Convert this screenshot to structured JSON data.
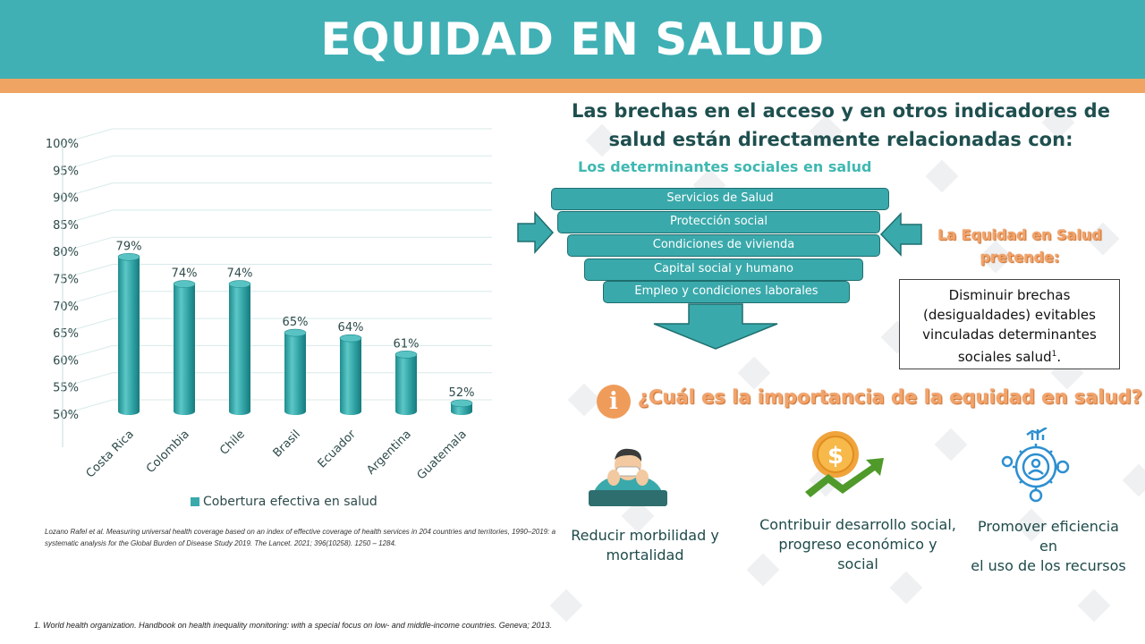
{
  "header": {
    "title": "EQUIDAD EN SALUD"
  },
  "chart_data": {
    "type": "bar",
    "categories": [
      "Costa Rica",
      "Colombia",
      "Chile",
      "Brasil",
      "Ecuador",
      "Argentina",
      "Guatemala"
    ],
    "series": [
      {
        "name": "Cobertura efectiva en salud",
        "values": [
          79,
          74,
          74,
          65,
          64,
          61,
          52
        ]
      }
    ],
    "data_labels": [
      "79%",
      "74%",
      "74%",
      "65%",
      "64%",
      "61%",
      "52%"
    ],
    "y_ticks": [
      "50%",
      "55%",
      "60%",
      "65%",
      "70%",
      "75%",
      "80%",
      "85%",
      "90%",
      "95%",
      "100%"
    ],
    "ylim": [
      50,
      100
    ],
    "legend": "bottom",
    "color": "#3aa9ab"
  },
  "citation": "Lozano Rafel et al. Measuring universal health coverage based on an index of effective coverage of health services in 204 countries and territories, 1990–2019: a systematic analysis for the Global Burden of Disease Study 2019. The Lancet. 2021; 396(10258). 1250 – 1284.",
  "footnote": "1. World health organization. Handbook on health inequality monitoring: with a special focus on low- and middle-income countries. Geneva; 2013.",
  "right": {
    "heading_line1": "Las brechas en el acceso y en otros indicadores de",
    "heading_line2": "salud están directamente relacionadas con:",
    "determinants_title": "Los determinantes sociales en salud",
    "funnel": [
      "Servicios de Salud",
      "Protección social",
      "Condiciones de vivienda",
      "Capital social y humano",
      "Empleo y condiciones laborales"
    ],
    "equity_label_line1": "La Equidad en Salud",
    "equity_label_line2": "pretende:",
    "equity_box_line1": "Disminuir brechas",
    "equity_box_line2": "(desigualdades) evitables",
    "equity_box_line3": "vinculadas determinantes",
    "equity_box_line4": "sociales salud",
    "equity_box_sup": "1",
    "equity_box_end": ".",
    "info_symbol": "i",
    "question": "¿Cuál es la importancia de la equidad en salud?",
    "benefits": [
      {
        "line1": "Reducir morbilidad y",
        "line2": "mortalidad",
        "icon": "sick-person-icon"
      },
      {
        "line1": "Contribuir desarrollo social,",
        "line2": "progreso económico y social",
        "icon": "coin-growth-icon"
      },
      {
        "line1": "Promover eficiencia en",
        "line2": "el uso de los recursos",
        "icon": "efficiency-gear-icon"
      }
    ],
    "colors": {
      "teal": "#40b0b4",
      "orange": "#efa463",
      "dark_teal": "#1f4f4f"
    }
  }
}
